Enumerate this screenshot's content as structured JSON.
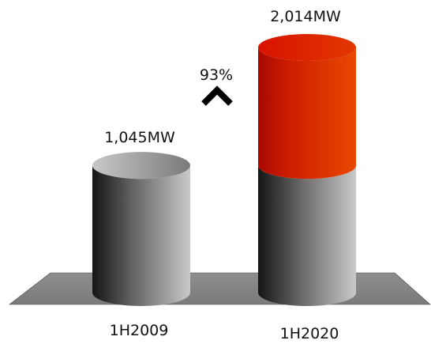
{
  "chart_data": {
    "type": "bar",
    "categories": [
      "1H2009",
      "1H2020"
    ],
    "values": [
      1045,
      2014
    ],
    "value_labels": [
      "1,045MW",
      "2,014MW"
    ],
    "increase": {
      "label": "93%",
      "icon": "chevron-up-icon"
    },
    "unit": "MW",
    "title": "",
    "xlabel": "",
    "ylabel": "",
    "ylim": [
      0,
      2014
    ],
    "colors": {
      "base": "#8a8a8a",
      "highlight": "#e03a00",
      "platform": "#8c8c8c"
    }
  }
}
